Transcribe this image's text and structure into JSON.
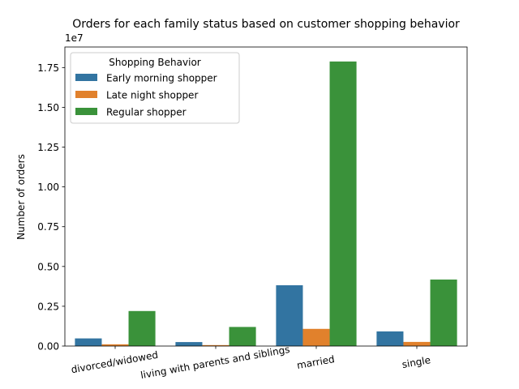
{
  "chart_data": {
    "type": "bar",
    "title": "Orders for each family status based on customer shopping behavior",
    "xlabel": "",
    "ylabel": "Number of orders",
    "y_offset_label": "1e7",
    "categories": [
      "divorced/widowed",
      "living with parents and siblings",
      "married",
      "single"
    ],
    "series": [
      {
        "name": "Early morning shopper",
        "color": "#3274a1",
        "values": [
          480000,
          250000,
          3820000,
          920000
        ]
      },
      {
        "name": "Late night shopper",
        "color": "#e1812c",
        "values": [
          110000,
          60000,
          1080000,
          260000
        ]
      },
      {
        "name": "Regular shopper",
        "color": "#3a923a",
        "values": [
          2200000,
          1200000,
          17880000,
          4180000
        ]
      }
    ],
    "ylim": [
      0,
      18790000
    ],
    "yticks": [
      0,
      2500000,
      5000000,
      7500000,
      10000000,
      12500000,
      15000000,
      17500000
    ],
    "ytick_labels": [
      "0.00",
      "0.25",
      "0.50",
      "0.75",
      "1.00",
      "1.25",
      "1.50",
      "1.75"
    ],
    "legend": {
      "title": "Shopping Behavior",
      "placement": "top-left"
    },
    "grid": false
  }
}
